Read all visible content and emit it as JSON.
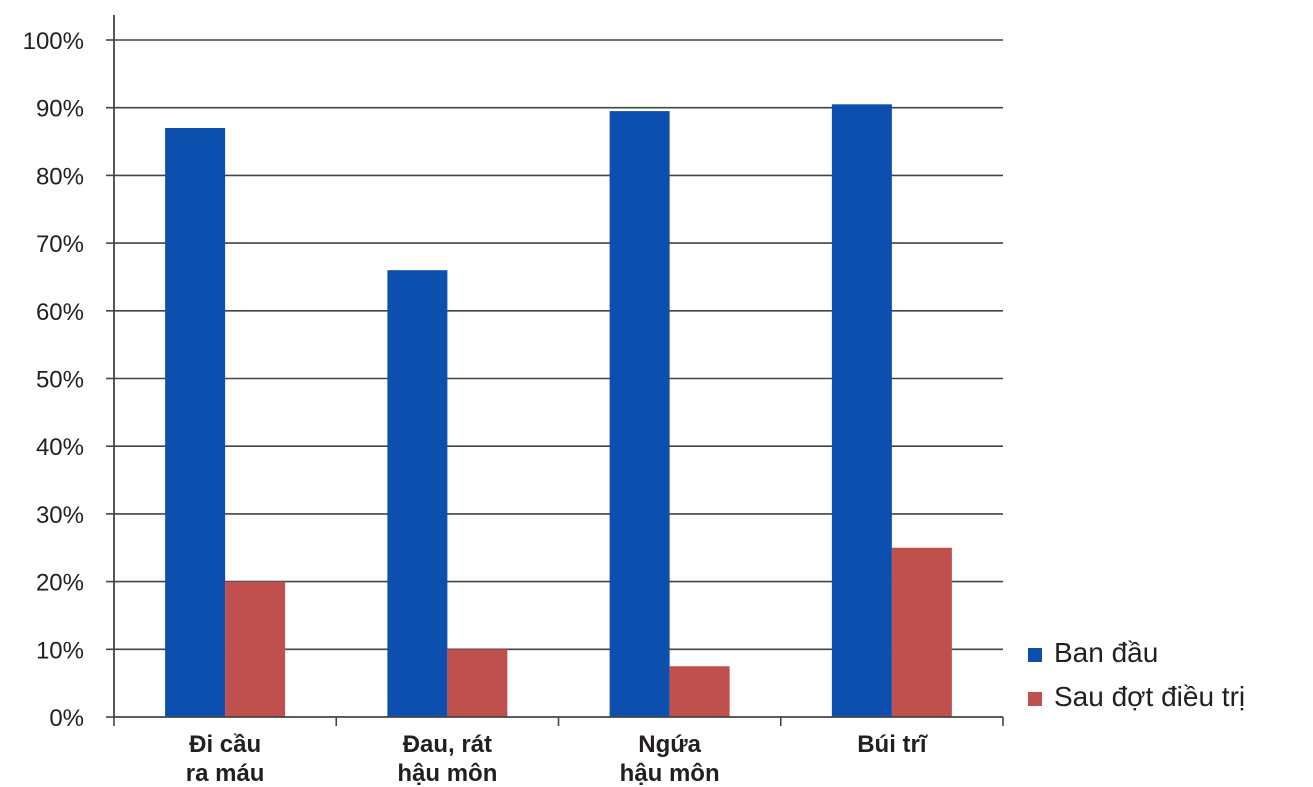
{
  "chart_data": {
    "type": "bar",
    "title": "",
    "xlabel": "",
    "ylabel": "",
    "ylim": [
      0,
      100
    ],
    "y_ticks": [
      0,
      10,
      20,
      30,
      40,
      50,
      60,
      70,
      80,
      90,
      100
    ],
    "y_tick_labels": [
      "0%",
      "10%",
      "20%",
      "30%",
      "40%",
      "50%",
      "60%",
      "70%",
      "80%",
      "90%",
      "100%"
    ],
    "grid": true,
    "legend_position": "right",
    "categories": [
      [
        "Đi cầu",
        "ra máu"
      ],
      [
        "Đau, rát",
        "hậu môn"
      ],
      [
        "Ngứa",
        "hậu môn"
      ],
      [
        "Búi trĩ"
      ]
    ],
    "series": [
      {
        "name": "Ban đầu",
        "color": "#0d4fae",
        "values": [
          87,
          66,
          89.5,
          90.5
        ]
      },
      {
        "name": "Sau đợt điều trị",
        "color": "#c0504d",
        "values": [
          20,
          10,
          7.5,
          25
        ]
      }
    ]
  }
}
